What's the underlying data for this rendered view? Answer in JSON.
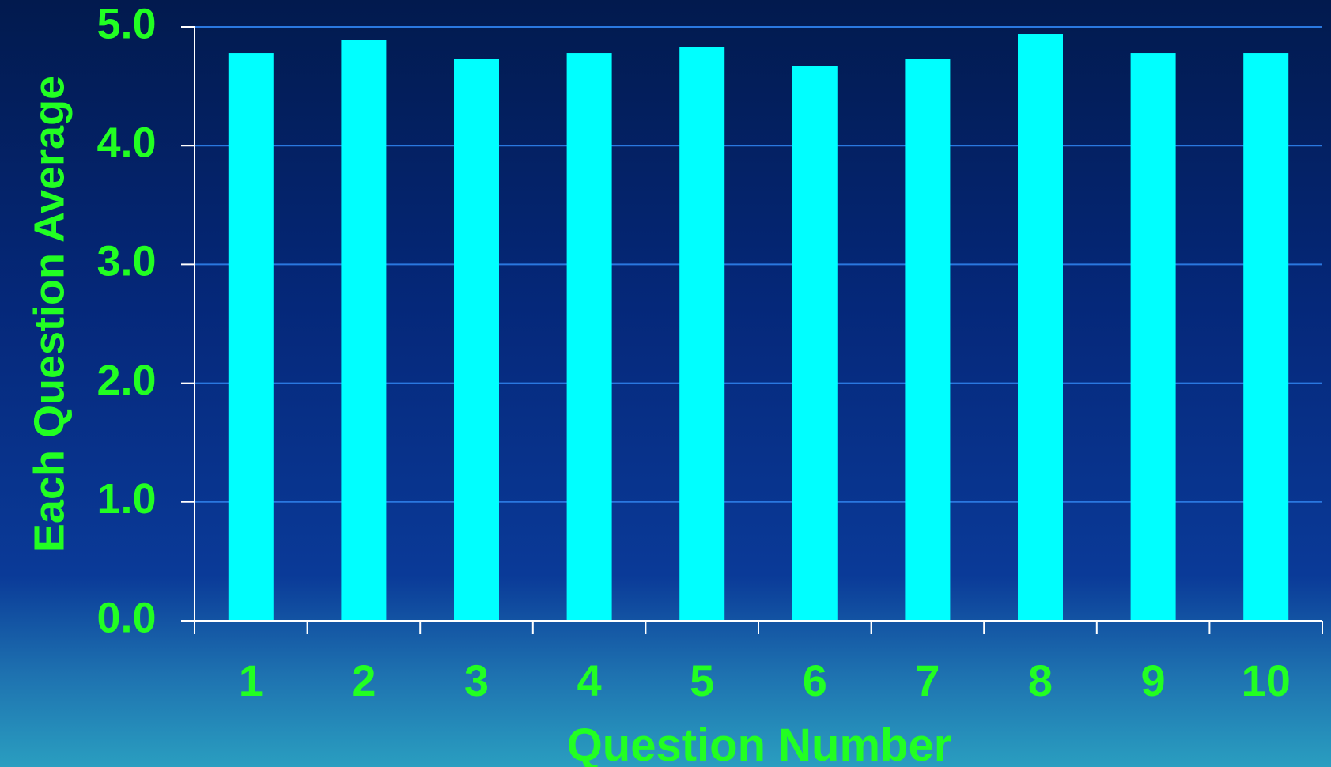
{
  "chart_data": {
    "type": "bar",
    "categories": [
      "1",
      "2",
      "3",
      "4",
      "5",
      "6",
      "7",
      "8",
      "9",
      "10"
    ],
    "values": [
      4.78,
      4.89,
      4.73,
      4.78,
      4.83,
      4.67,
      4.73,
      4.94,
      4.78,
      4.78
    ],
    "xlabel": "Question Number",
    "ylabel": "Each Question Average",
    "ylim": [
      0,
      5
    ],
    "yticks": [
      "0.0",
      "1.0",
      "2.0",
      "3.0",
      "4.0",
      "5.0"
    ],
    "grid": true,
    "colors": {
      "bar": "#00ffff",
      "label": "#22ff22",
      "gridline": "#2a78e0",
      "axis": "#ffffff"
    }
  }
}
